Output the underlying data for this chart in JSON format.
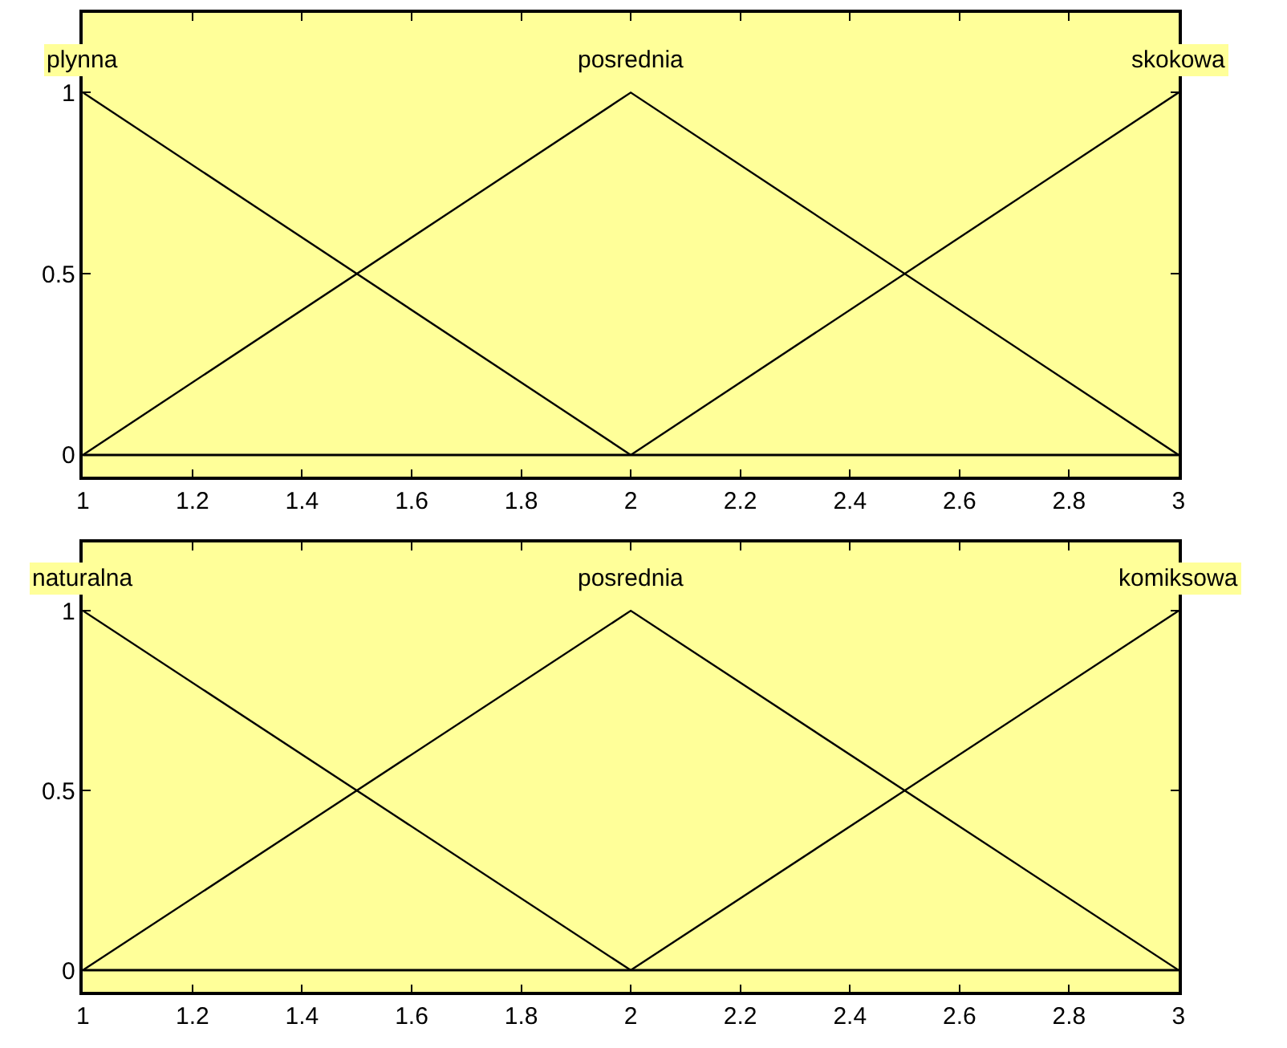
{
  "chart_data": [
    {
      "type": "line",
      "xlim": [
        1,
        3
      ],
      "ylim": [
        -0.06,
        1.22
      ],
      "xticks": [
        1,
        1.2,
        1.4,
        1.6,
        1.8,
        2,
        2.2,
        2.4,
        2.6,
        2.8,
        3
      ],
      "yticks": [
        0,
        0.5,
        1
      ],
      "grid": false,
      "line_style": "solid",
      "marker": "none",
      "series": [
        {
          "color": "#000000",
          "x": [
            1,
            2
          ],
          "values": [
            1,
            0
          ]
        },
        {
          "color": "#000000",
          "x": [
            1,
            2,
            3
          ],
          "values": [
            0,
            1,
            0
          ]
        },
        {
          "color": "#000000",
          "x": [
            2,
            3
          ],
          "values": [
            0,
            1
          ]
        }
      ],
      "ref_lines": [
        {
          "axis": "y",
          "value": 0,
          "color": "#000000"
        }
      ],
      "annotations": [
        {
          "text": "plynna",
          "x": 1,
          "y": 1
        },
        {
          "text": "posrednia",
          "x": 2,
          "y": 1
        },
        {
          "text": "skokowa",
          "x": 3,
          "y": 1
        }
      ]
    },
    {
      "type": "line",
      "xlim": [
        1,
        3
      ],
      "ylim": [
        -0.06,
        1.19
      ],
      "xticks": [
        1,
        1.2,
        1.4,
        1.6,
        1.8,
        2,
        2.2,
        2.4,
        2.6,
        2.8,
        3
      ],
      "yticks": [
        0,
        0.5,
        1
      ],
      "grid": false,
      "line_style": "solid",
      "marker": "none",
      "series": [
        {
          "color": "#000000",
          "x": [
            1,
            2
          ],
          "values": [
            1,
            0
          ]
        },
        {
          "color": "#000000",
          "x": [
            1,
            2,
            3
          ],
          "values": [
            0,
            1,
            0
          ]
        },
        {
          "color": "#000000",
          "x": [
            2,
            3
          ],
          "values": [
            0,
            1
          ]
        }
      ],
      "ref_lines": [
        {
          "axis": "y",
          "value": 0,
          "color": "#000000"
        }
      ],
      "annotations": [
        {
          "text": "naturalna",
          "x": 1,
          "y": 1
        },
        {
          "text": "posrednia",
          "x": 2,
          "y": 1
        },
        {
          "text": "komiksowa",
          "x": 3,
          "y": 1
        }
      ]
    }
  ]
}
